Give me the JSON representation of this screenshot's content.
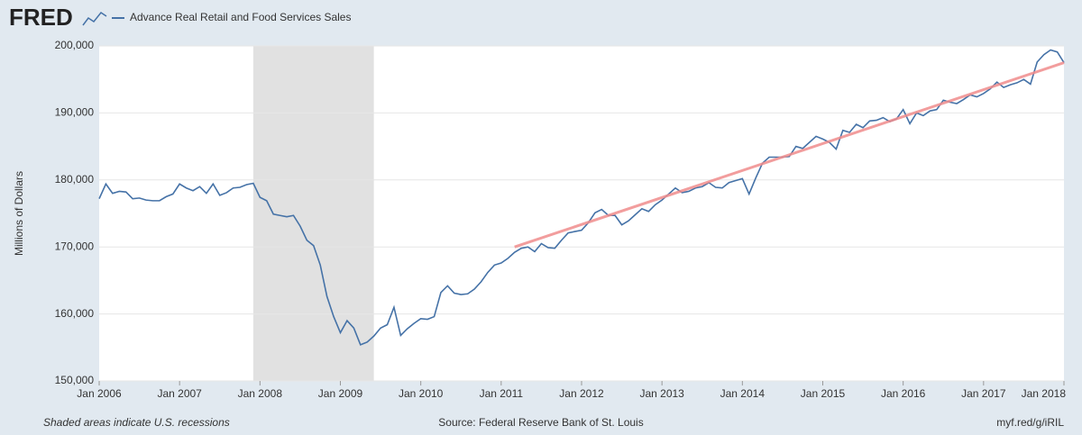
{
  "logo": "FRED",
  "chart_data": {
    "type": "line",
    "series": [
      {
        "name": "Advance Real Retail and Food Services Sales",
        "color": "#4572a7",
        "values": [
          177200,
          179400,
          178000,
          178300,
          178200,
          177200,
          177300,
          177000,
          176900,
          176900,
          177500,
          177900,
          179400,
          178800,
          178400,
          179000,
          178000,
          179400,
          177700,
          178100,
          178800,
          178900,
          179300,
          179500,
          177400,
          176900,
          174900,
          174700,
          174500,
          174700,
          173100,
          171000,
          170200,
          167300,
          162600,
          159600,
          157200,
          159000,
          157900,
          155400,
          155800,
          156700,
          157900,
          158400,
          161000,
          156800,
          157800,
          158600,
          159300,
          159200,
          159600,
          163200,
          164200,
          163100,
          162900,
          163000,
          163700,
          164800,
          166200,
          167300,
          167600,
          168300,
          169200,
          169800,
          170000,
          169300,
          170500,
          169900,
          169800,
          171000,
          172100,
          172300,
          172500,
          173600,
          175100,
          175600,
          174700,
          174700,
          173300,
          173900,
          174800,
          175700,
          175300,
          176300,
          177000,
          177900,
          178800,
          178100,
          178300,
          178800,
          179000,
          179600,
          178900,
          178800,
          179600,
          179900,
          180200,
          177900,
          180300,
          182500,
          183400,
          183400,
          183400,
          183500,
          185000,
          184700,
          185600,
          186500,
          186100,
          185600,
          184600,
          187400,
          187100,
          188300,
          187800,
          188800,
          188900,
          189300,
          188700,
          189100,
          190500,
          188400,
          190000,
          189600,
          190300,
          190500,
          191900,
          191600,
          191400,
          192000,
          192700,
          192400,
          192900,
          193600,
          194600,
          193800,
          194200,
          194500,
          195000,
          194300,
          197600,
          198700,
          199400,
          199100,
          197500
        ]
      }
    ],
    "x_start": "2006-01",
    "xlim": [
      "2006-01",
      "2018-01"
    ],
    "xticks": [
      {
        "value": "2006-01",
        "label": "Jan 2006"
      },
      {
        "value": "2007-01",
        "label": "Jan 2007"
      },
      {
        "value": "2008-01",
        "label": "Jan 2008"
      },
      {
        "value": "2009-01",
        "label": "Jan 2009"
      },
      {
        "value": "2010-01",
        "label": "Jan 2010"
      },
      {
        "value": "2011-01",
        "label": "Jan 2011"
      },
      {
        "value": "2012-01",
        "label": "Jan 2012"
      },
      {
        "value": "2013-01",
        "label": "Jan 2013"
      },
      {
        "value": "2014-01",
        "label": "Jan 2014"
      },
      {
        "value": "2015-01",
        "label": "Jan 2015"
      },
      {
        "value": "2016-01",
        "label": "Jan 2016"
      },
      {
        "value": "2017-01",
        "label": "Jan 2017"
      },
      {
        "value": "2018-01",
        "label": "Jan 2018"
      }
    ],
    "ylim": [
      150000,
      200000
    ],
    "yticks": [
      {
        "value": 150000,
        "label": "150,000"
      },
      {
        "value": 160000,
        "label": "160,000"
      },
      {
        "value": 170000,
        "label": "170,000"
      },
      {
        "value": 180000,
        "label": "180,000"
      },
      {
        "value": 190000,
        "label": "190,000"
      },
      {
        "value": 200000,
        "label": "200,000"
      }
    ],
    "y_label": "Millions of Dollars",
    "grid": true,
    "recession": [
      "2007-12",
      "2009-06"
    ],
    "trend_line": {
      "x": [
        "2011-03",
        "2018-01"
      ],
      "values": [
        170000,
        197500
      ],
      "color": "#f08c8c"
    },
    "recession_note": "Shaded areas indicate U.S. recessions",
    "source": "Source: Federal Reserve Bank of St. Louis",
    "link": "myf.red/g/iRIL"
  }
}
